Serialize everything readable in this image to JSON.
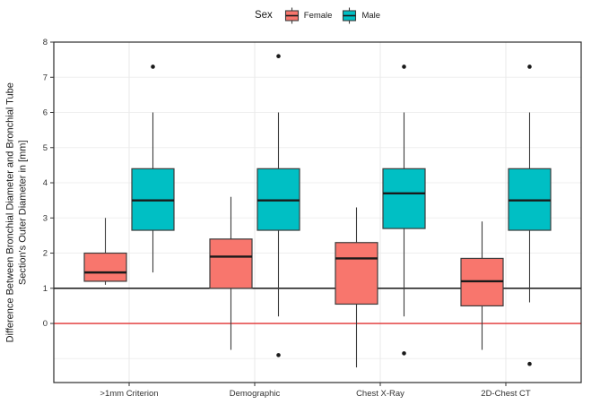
{
  "legend": {
    "title": "Sex"
  },
  "chart_data": {
    "type": "boxplot",
    "title": "",
    "xlabel": "",
    "ylabel": "Difference Between Bronchial Diameter and Bronchial Tube\nSection's Outer Diameter in [mm]",
    "categories": [
      ">1mm Criterion",
      "Demographic",
      "Chest X-Ray",
      "2D-Chest CT"
    ],
    "y_ticks": [
      0,
      1,
      2,
      3,
      4,
      5,
      6,
      7,
      8
    ],
    "gridlines_y": [
      -1,
      0,
      1,
      2,
      3,
      4,
      5,
      6,
      7,
      8
    ],
    "ylim": [
      -1.68,
      8.0
    ],
    "grid": "major",
    "legend_position": "top",
    "reference_lines": [
      {
        "y": 1,
        "color": "#000000",
        "label": "black reference line at 1 mm"
      },
      {
        "y": 0,
        "color": "#e03131",
        "label": "red reference line at 0 mm"
      }
    ],
    "colors": {
      "female_fill": "#F8766D",
      "male_fill": "#00BFC4",
      "box_stroke": "#3c3c3c",
      "median": "#1a1a1a",
      "grid_h": "#efefef",
      "grid_v": "#e9e9e9",
      "panel_border": "#2b2b2b",
      "axis_text": "#333333",
      "outlier": "#1a1a1a"
    },
    "series": [
      {
        "name": "Female",
        "color": "#F8766D",
        "boxes": [
          {
            "category": ">1mm Criterion",
            "low": 1.1,
            "q1": 1.2,
            "median": 1.45,
            "q3": 2.0,
            "high": 3.0,
            "outliers": []
          },
          {
            "category": "Demographic",
            "low": -0.75,
            "q1": 1.0,
            "median": 1.9,
            "q3": 2.4,
            "high": 3.6,
            "outliers": []
          },
          {
            "category": "Chest X-Ray",
            "low": -1.25,
            "q1": 0.55,
            "median": 1.85,
            "q3": 2.3,
            "high": 3.3,
            "outliers": []
          },
          {
            "category": "2D-Chest CT",
            "low": -0.75,
            "q1": 0.5,
            "median": 1.2,
            "q3": 1.85,
            "high": 2.9,
            "outliers": []
          }
        ]
      },
      {
        "name": "Male",
        "color": "#00BFC4",
        "boxes": [
          {
            "category": ">1mm Criterion",
            "low": 1.45,
            "q1": 2.65,
            "median": 3.5,
            "q3": 4.4,
            "high": 6.0,
            "outliers": [
              7.3
            ]
          },
          {
            "category": "Demographic",
            "low": 0.2,
            "q1": 2.65,
            "median": 3.5,
            "q3": 4.4,
            "high": 6.0,
            "outliers": [
              7.6,
              -0.9
            ]
          },
          {
            "category": "Chest X-Ray",
            "low": 0.2,
            "q1": 2.7,
            "median": 3.7,
            "q3": 4.4,
            "high": 6.0,
            "outliers": [
              7.3,
              -0.85
            ]
          },
          {
            "category": "2D-Chest CT",
            "low": 0.6,
            "q1": 2.65,
            "median": 3.5,
            "q3": 4.4,
            "high": 6.0,
            "outliers": [
              7.3,
              -1.15
            ]
          }
        ]
      }
    ]
  }
}
